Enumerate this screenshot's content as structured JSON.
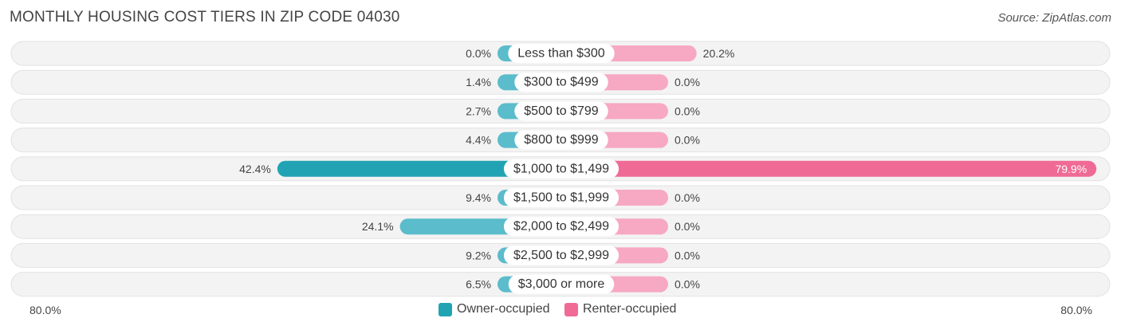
{
  "title": "MONTHLY HOUSING COST TIERS IN ZIP CODE 04030",
  "source": "Source: ZipAtlas.com",
  "colors": {
    "owner": "#5bbccb",
    "owner_strong": "#22a3b4",
    "renter": "#f7a8c2",
    "renter_strong": "#f06a96",
    "row_bg": "#f0f0f0"
  },
  "chart_data": {
    "type": "bar",
    "orientation": "horizontal-diverging",
    "categories": [
      "Less than $300",
      "$300 to $499",
      "$500 to $799",
      "$800 to $999",
      "$1,000 to $1,499",
      "$1,500 to $1,999",
      "$2,000 to $2,499",
      "$2,500 to $2,999",
      "$3,000 or more"
    ],
    "series": [
      {
        "name": "Owner-occupied",
        "values": [
          0.0,
          1.4,
          2.7,
          4.4,
          42.4,
          9.4,
          24.1,
          9.2,
          6.5
        ],
        "labels": [
          "0.0%",
          "1.4%",
          "2.7%",
          "4.4%",
          "42.4%",
          "9.4%",
          "24.1%",
          "9.2%",
          "6.5%"
        ]
      },
      {
        "name": "Renter-occupied",
        "values": [
          20.2,
          0.0,
          0.0,
          0.0,
          79.9,
          0.0,
          0.0,
          0.0,
          0.0
        ],
        "labels": [
          "20.2%",
          "0.0%",
          "0.0%",
          "0.0%",
          "79.9%",
          "0.0%",
          "0.0%",
          "0.0%",
          "0.0%"
        ]
      }
    ],
    "xlim": [
      -80,
      80
    ],
    "axis_left_label": "80.0%",
    "axis_right_label": "80.0%",
    "legend_position": "bottom-center"
  }
}
